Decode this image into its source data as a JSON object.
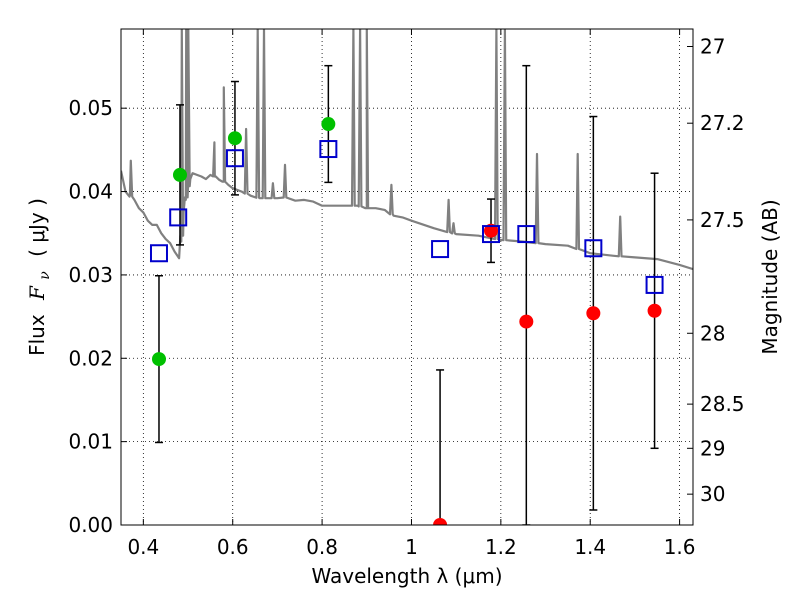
{
  "chart_data": {
    "type": "scatter",
    "xlabel": "Wavelength  λ (μm)",
    "ylabel": "Flux  F_ν  ( μJy )",
    "ylabel_parts": {
      "prefix": "Flux",
      "symbol": "F",
      "subscript": "ν",
      "unit": "( μJy )"
    },
    "ylabel_right": "Magnitude (AB)",
    "xlim": [
      0.35,
      1.63
    ],
    "ylim": [
      0.0,
      0.0595
    ],
    "x_ticks": [
      0.4,
      0.6,
      0.8,
      1.0,
      1.2,
      1.4,
      1.6
    ],
    "x_tick_labels": [
      "0.4",
      "0.6",
      "0.8",
      "1",
      "1.2",
      "1.4",
      "1.6"
    ],
    "y_ticks": [
      0.0,
      0.01,
      0.02,
      0.03,
      0.04,
      0.05
    ],
    "y_tick_labels": [
      "0.00",
      "0.01",
      "0.02",
      "0.03",
      "0.04",
      "0.05"
    ],
    "right_ticks": [
      {
        "flux": 0.0574,
        "label": "27"
      },
      {
        "flux": 0.0482,
        "label": "27.2"
      },
      {
        "flux": 0.0366,
        "label": "27.5"
      },
      {
        "flux": 0.023,
        "label": "28"
      },
      {
        "flux": 0.0145,
        "label": "28.5"
      },
      {
        "flux": 0.0092,
        "label": "29"
      },
      {
        "flux": 0.0037,
        "label": "30"
      }
    ],
    "grid": true,
    "series": [
      {
        "name": "detected (green)",
        "color": "#00c000",
        "points": [
          {
            "x": 0.435,
            "y": 0.0199,
            "err": 0.01
          },
          {
            "x": 0.482,
            "y": 0.042,
            "err": 0.0084
          },
          {
            "x": 0.605,
            "y": 0.0464,
            "err": 0.0068
          },
          {
            "x": 0.814,
            "y": 0.0481,
            "err": 0.007
          }
        ]
      },
      {
        "name": "measured (red)",
        "color": "#ff0000",
        "points": [
          {
            "x": 1.064,
            "y": 0.0,
            "err": 0.0186
          },
          {
            "x": 1.178,
            "y": 0.0353,
            "err": 0.0038
          },
          {
            "x": 1.257,
            "y": 0.0244,
            "err": 0.0307
          },
          {
            "x": 1.407,
            "y": 0.0254,
            "err": 0.0236
          },
          {
            "x": 1.544,
            "y": 0.0257,
            "err": 0.0165
          }
        ]
      },
      {
        "name": "model (blue squares)",
        "color": "#0000cc",
        "points": [
          {
            "x": 0.435,
            "y": 0.0326
          },
          {
            "x": 0.478,
            "y": 0.0369
          },
          {
            "x": 0.605,
            "y": 0.044
          },
          {
            "x": 0.814,
            "y": 0.0451
          },
          {
            "x": 1.064,
            "y": 0.0331
          },
          {
            "x": 1.178,
            "y": 0.0349
          },
          {
            "x": 1.257,
            "y": 0.0349
          },
          {
            "x": 1.407,
            "y": 0.0332
          },
          {
            "x": 1.544,
            "y": 0.0288
          }
        ]
      }
    ],
    "spectrum": {
      "name": "model spectrum",
      "color": "#808080",
      "x": [
        0.35,
        0.36,
        0.37,
        0.38,
        0.39,
        0.4,
        0.41,
        0.42,
        0.43,
        0.44,
        0.45,
        0.46,
        0.47,
        0.48,
        0.485,
        0.49,
        0.495,
        0.5,
        0.505,
        0.51,
        0.52,
        0.53,
        0.54,
        0.55,
        0.56,
        0.57,
        0.58,
        0.59,
        0.6,
        0.62,
        0.64,
        0.66,
        0.68,
        0.7,
        0.72,
        0.74,
        0.76,
        0.78,
        0.8,
        0.82,
        0.84,
        0.86,
        0.88,
        0.9,
        0.92,
        0.94,
        0.96,
        0.98,
        1.0,
        1.05,
        1.1,
        1.15,
        1.2,
        1.25,
        1.3,
        1.35,
        1.4,
        1.45,
        1.5,
        1.55,
        1.6,
        1.63
      ],
      "y": [
        0.0425,
        0.04,
        0.0395,
        0.039,
        0.038,
        0.0375,
        0.0365,
        0.036,
        0.036,
        0.035,
        0.0343,
        0.0338,
        0.0328,
        0.032,
        0.034,
        0.0375,
        0.039,
        0.0405,
        0.0415,
        0.0422,
        0.042,
        0.0418,
        0.0415,
        0.042,
        0.0418,
        0.0414,
        0.0412,
        0.0408,
        0.0404,
        0.04,
        0.0395,
        0.0392,
        0.0392,
        0.0392,
        0.0393,
        0.0389,
        0.039,
        0.0388,
        0.0383,
        0.0383,
        0.0383,
        0.0383,
        0.0383,
        0.038,
        0.038,
        0.0378,
        0.0371,
        0.0369,
        0.0365,
        0.0356,
        0.0349,
        0.0347,
        0.0342,
        0.034,
        0.0337,
        0.0335,
        0.0326,
        0.0323,
        0.0321,
        0.0319,
        0.0312,
        0.0307
      ],
      "emission_lines": [
        {
          "x": 0.372,
          "peak": 0.0437
        },
        {
          "x": 0.486,
          "peak": 0.0595
        },
        {
          "x": 0.496,
          "peak": 0.0595
        },
        {
          "x": 0.5007,
          "peak": 0.0595
        },
        {
          "x": 0.559,
          "peak": 0.0459
        },
        {
          "x": 0.58,
          "peak": 0.0525
        },
        {
          "x": 0.63,
          "peak": 0.0475
        },
        {
          "x": 0.656,
          "peak": 0.0595
        },
        {
          "x": 0.67,
          "peak": 0.0595
        },
        {
          "x": 0.69,
          "peak": 0.041
        },
        {
          "x": 0.717,
          "peak": 0.0432
        },
        {
          "x": 0.87,
          "peak": 0.0595
        },
        {
          "x": 0.885,
          "peak": 0.0595
        },
        {
          "x": 0.9,
          "peak": 0.0595
        },
        {
          "x": 0.955,
          "peak": 0.0408
        },
        {
          "x": 1.083,
          "peak": 0.039
        },
        {
          "x": 1.094,
          "peak": 0.0362
        },
        {
          "x": 1.19,
          "peak": 0.0595
        },
        {
          "x": 1.209,
          "peak": 0.0595
        },
        {
          "x": 1.281,
          "peak": 0.0445
        },
        {
          "x": 1.372,
          "peak": 0.0445
        },
        {
          "x": 1.467,
          "peak": 0.037
        }
      ]
    }
  }
}
